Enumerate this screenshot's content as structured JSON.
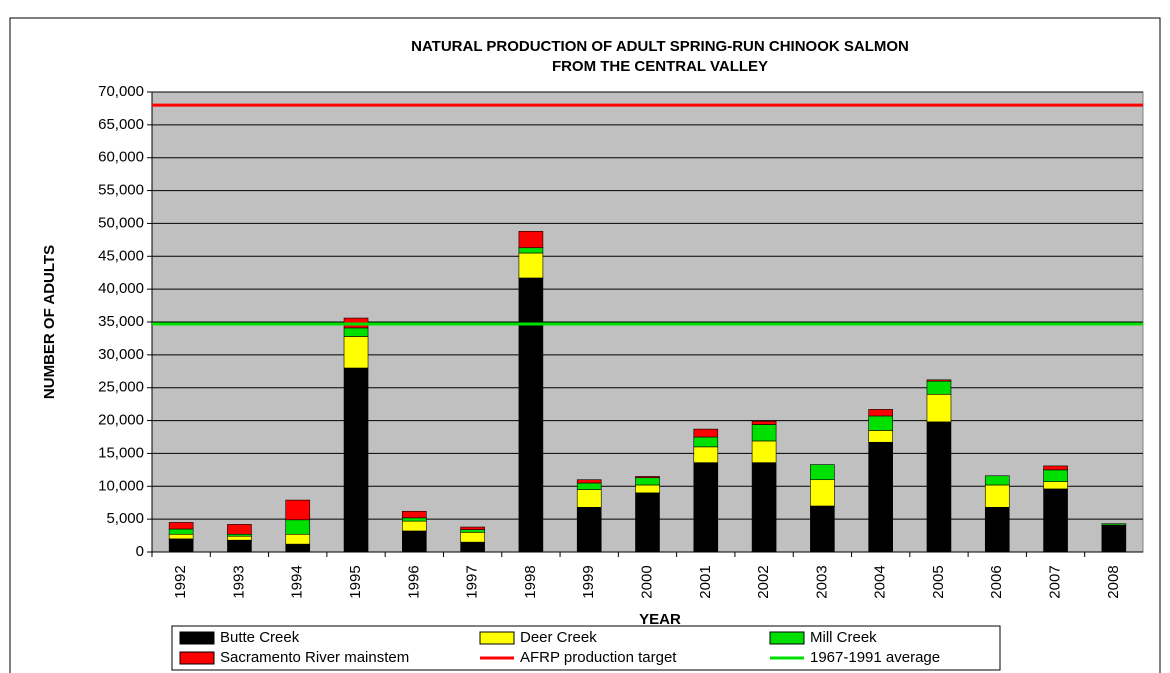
{
  "chart_data": {
    "type": "bar",
    "title": [
      "NATURAL PRODUCTION OF ADULT SPRING-RUN CHINOOK SALMON",
      "FROM THE CENTRAL VALLEY"
    ],
    "x_label": "YEAR",
    "y_label": "NUMBER OF ADULTS",
    "categories": [
      "1992",
      "1993",
      "1994",
      "1995",
      "1996",
      "1997",
      "1998",
      "1999",
      "2000",
      "2001",
      "2002",
      "2003",
      "2004",
      "2005",
      "2006",
      "2007",
      "2008"
    ],
    "series": [
      {
        "name": "Butte Creek",
        "color": "#000000",
        "values": [
          2000,
          1800,
          1200,
          28000,
          3200,
          1500,
          41700,
          6800,
          9000,
          13600,
          13600,
          7000,
          16700,
          19800,
          6800,
          9600,
          4000
        ]
      },
      {
        "name": "Deer Creek",
        "color": "#ffff00",
        "values": [
          700,
          600,
          1500,
          4800,
          1500,
          1500,
          3800,
          2700,
          1200,
          2400,
          3300,
          4000,
          1800,
          4200,
          3400,
          1100,
          100
        ]
      },
      {
        "name": "Mill Creek",
        "color": "#00e000",
        "values": [
          800,
          300,
          2200,
          1300,
          500,
          400,
          800,
          1000,
          1100,
          1500,
          2500,
          2300,
          2200,
          2000,
          1400,
          1800,
          200
        ]
      },
      {
        "name": "Sacramento River mainstem",
        "color": "#ff0000",
        "values": [
          1000,
          1500,
          3000,
          1500,
          1000,
          400,
          2500,
          500,
          200,
          1200,
          500,
          0,
          1000,
          200,
          0,
          600,
          0
        ]
      }
    ],
    "reference_lines": [
      {
        "name": "AFRP production target",
        "color": "#ff0000",
        "value": 68000
      },
      {
        "name": "1967-1991 average",
        "color": "#00e000",
        "value": 34700
      }
    ],
    "ylim": [
      0,
      70000
    ],
    "yticks": [
      0,
      {
        "value": 5000,
        "label": "5,000"
      },
      {
        "value": 10000,
        "label": "10,000"
      },
      {
        "value": 15000,
        "label": "15,000"
      },
      {
        "value": 20000,
        "label": "20,000"
      },
      {
        "value": 25000,
        "label": "25,000"
      },
      {
        "value": 30000,
        "label": "30,000"
      },
      {
        "value": 35000,
        "label": "35,000"
      },
      {
        "value": 40000,
        "label": "40,000"
      },
      {
        "value": 45000,
        "label": "45,000"
      },
      {
        "value": 50000,
        "label": "50,000"
      },
      {
        "value": 55000,
        "label": "55,000"
      },
      {
        "value": 60000,
        "label": "60,000"
      },
      {
        "value": 65000,
        "label": "65,000"
      },
      {
        "value": 70000,
        "label": "70,000"
      }
    ],
    "grid": true,
    "legend": "bottom",
    "plot_background": "#c0c0c0"
  }
}
